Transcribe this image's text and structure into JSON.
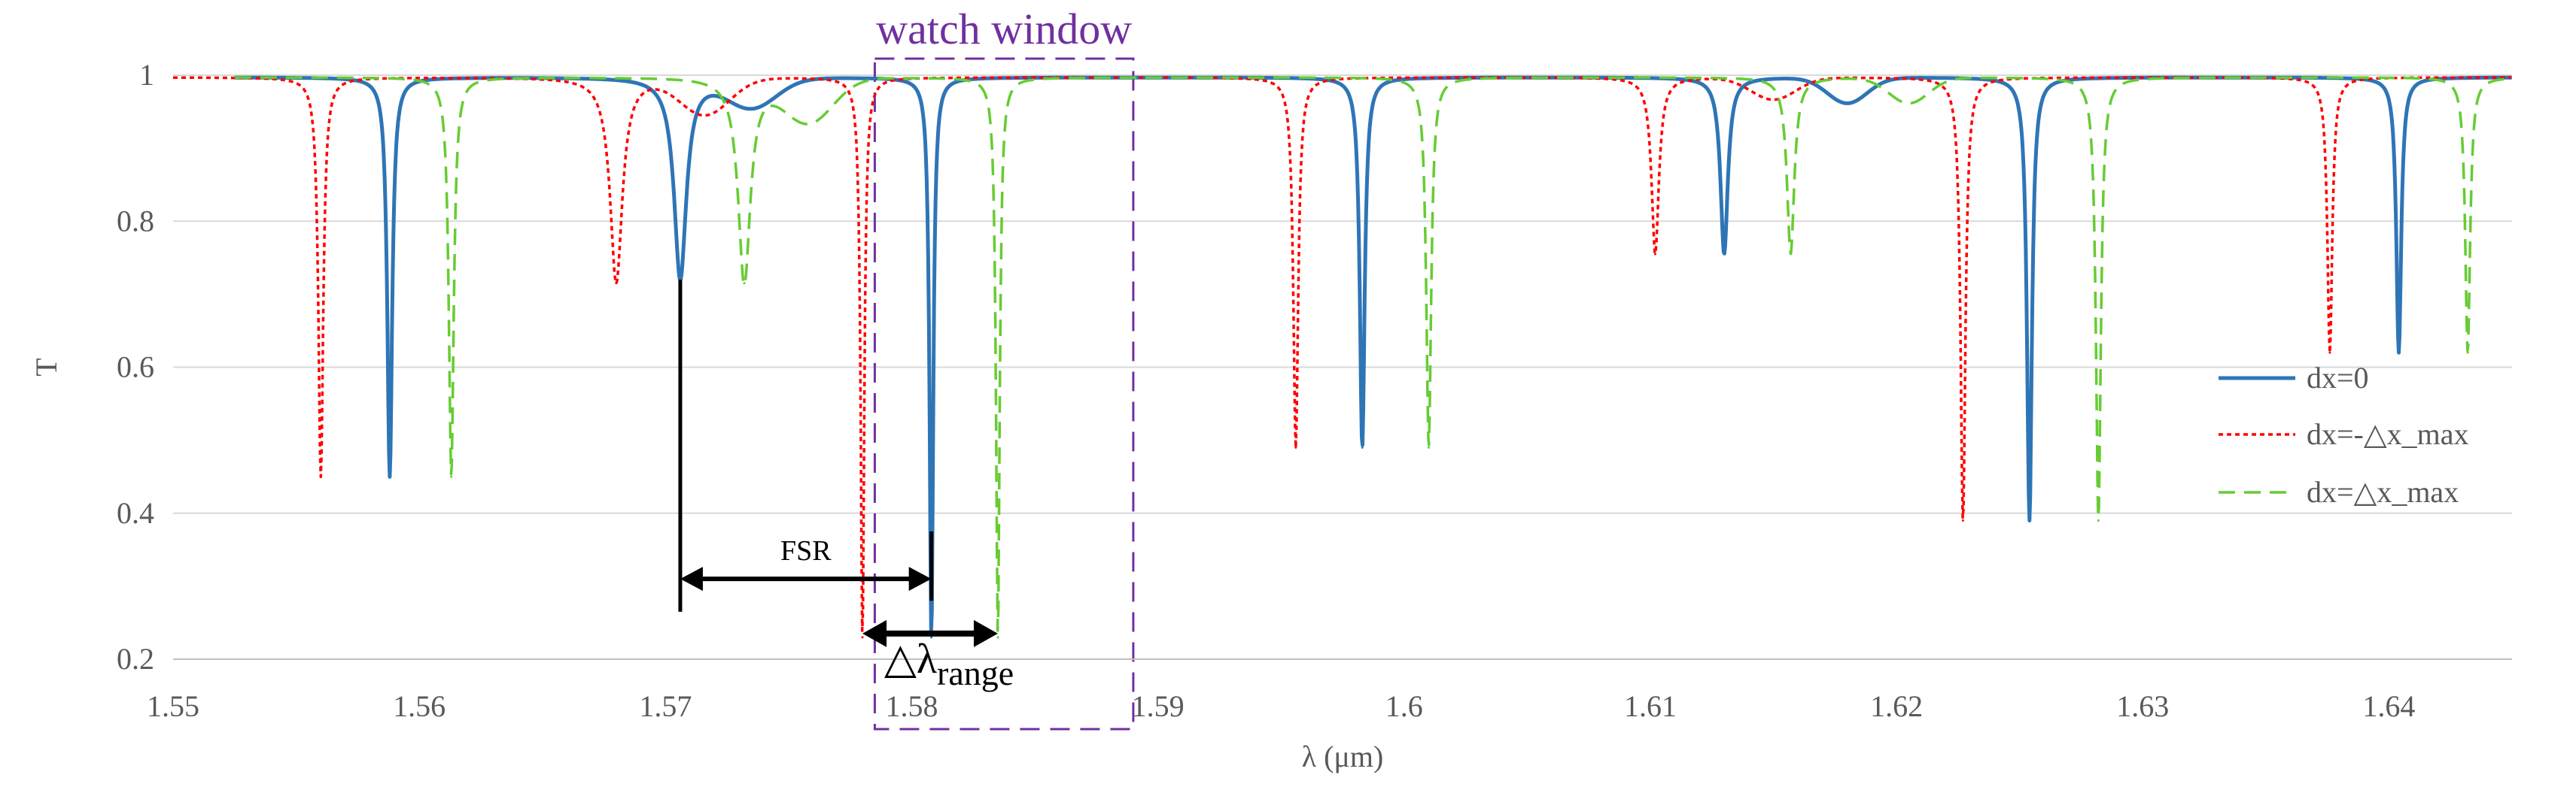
{
  "chart_data": {
    "type": "line",
    "title": "",
    "xlabel": "λ (μm)",
    "ylabel": "T",
    "xlim": [
      1.55,
      1.645
    ],
    "ylim": [
      0.2,
      1.0
    ],
    "xticks": [
      "1.55",
      "1.56",
      "1.57",
      "1.58",
      "1.59",
      "1.6",
      "1.61",
      "1.62",
      "1.63",
      "1.64"
    ],
    "yticks": [
      "0.2",
      "0.4",
      "0.6",
      "0.8",
      "1"
    ],
    "grid": "horizontal",
    "legend_position": "right",
    "series": [
      {
        "name": "dx=0",
        "color": "#2E75B6",
        "style": "solid",
        "dips": [
          {
            "x": 1.5588,
            "min": 0.45,
            "w": 0.00012
          },
          {
            "x": 1.5706,
            "min": 0.72,
            "w": 0.0003
          },
          {
            "x": 1.5808,
            "min": 0.23,
            "w": 9e-05
          },
          {
            "x": 1.5983,
            "min": 0.49,
            "w": 0.00012
          },
          {
            "x": 1.613,
            "min": 0.755,
            "w": 0.00018
          },
          {
            "x": 1.6254,
            "min": 0.39,
            "w": 0.00012
          },
          {
            "x": 1.6404,
            "min": 0.62,
            "w": 0.00012
          }
        ]
      },
      {
        "name": "dx=-△x_max",
        "color": "#FF0000",
        "style": "dotted",
        "dips": [
          {
            "x": 1.556,
            "min": 0.45,
            "w": 0.00012
          },
          {
            "x": 1.568,
            "min": 0.715,
            "w": 0.0003
          },
          {
            "x": 1.578,
            "min": 0.23,
            "w": 9e-05
          },
          {
            "x": 1.5956,
            "min": 0.49,
            "w": 0.00012
          },
          {
            "x": 1.6102,
            "min": 0.755,
            "w": 0.00018
          },
          {
            "x": 1.6227,
            "min": 0.39,
            "w": 0.00012
          },
          {
            "x": 1.6376,
            "min": 0.62,
            "w": 0.00012
          }
        ]
      },
      {
        "name": "dx=△x_max",
        "color": "#66CC33",
        "style": "dashed",
        "dips": [
          {
            "x": 1.5613,
            "min": 0.45,
            "w": 0.00012
          },
          {
            "x": 1.5732,
            "min": 0.715,
            "w": 0.0003
          },
          {
            "x": 1.5835,
            "min": 0.23,
            "w": 9e-05
          },
          {
            "x": 1.601,
            "min": 0.49,
            "w": 0.00012
          },
          {
            "x": 1.6157,
            "min": 0.755,
            "w": 0.00018
          },
          {
            "x": 1.6282,
            "min": 0.39,
            "w": 0.00012
          },
          {
            "x": 1.6432,
            "min": 0.62,
            "w": 0.00012
          }
        ]
      }
    ],
    "annotations": {
      "watch_window_label": "watch window",
      "watch_window_x": [
        1.5785,
        1.589
      ],
      "watch_window_color": "#7030A0",
      "fsr_label": "FSR",
      "fsr_x": [
        1.5706,
        1.5808
      ],
      "fsr_y": 0.31,
      "range_label_main": "△λ",
      "range_label_sub": "range",
      "range_x": [
        1.578,
        1.5835
      ],
      "range_y": 0.23
    }
  }
}
